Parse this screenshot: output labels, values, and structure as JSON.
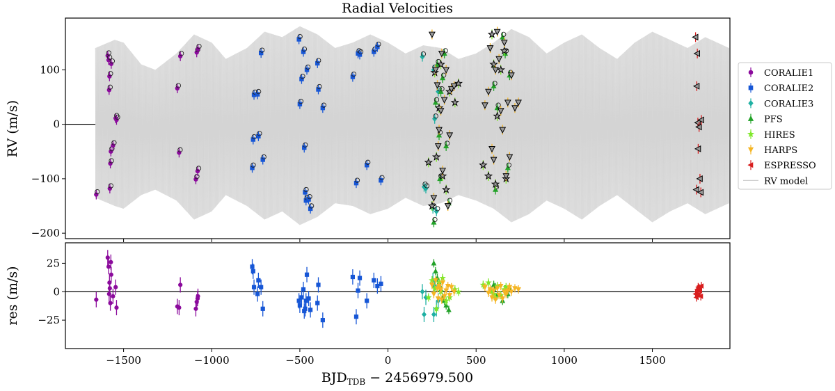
{
  "chart_data": {
    "type": "scatter",
    "title": "Radial Velocities",
    "xlabel_main": "BJD",
    "xlabel_sub": "TDB",
    "xlabel_suffix": " − 2456979.500",
    "xlim": [
      -1830,
      1940
    ],
    "xticks": [
      -1500,
      -1000,
      -500,
      0,
      500,
      1000,
      1500
    ],
    "xtick_labels": [
      "−1500",
      "−1000",
      "−500",
      "0",
      "500",
      "1000",
      "1500"
    ],
    "top_panel": {
      "ylabel": "RV (m/s)",
      "ylim": [
        -210,
        195
      ],
      "yticks": [
        -200,
        -100,
        0,
        100
      ],
      "ytick_labels": [
        "−200",
        "−100",
        "0",
        "100"
      ]
    },
    "bottom_panel": {
      "ylabel": "res (m/s)",
      "ylim": [
        -50,
        43
      ],
      "yticks": [
        -25,
        0,
        25
      ],
      "ytick_labels": [
        "−25",
        "0",
        "25"
      ]
    },
    "legend": {
      "location": "right",
      "entries": [
        {
          "label": "CORALIE1",
          "color": "#8b0a9c",
          "marker": "circle"
        },
        {
          "label": "CORALIE2",
          "color": "#1656d6",
          "marker": "square"
        },
        {
          "label": "CORALIE3",
          "color": "#1fb0a3",
          "marker": "diamond"
        },
        {
          "label": "PFS",
          "color": "#22a228",
          "marker": "triangle-up"
        },
        {
          "label": "HIRES",
          "color": "#7fe82a",
          "marker": "star"
        },
        {
          "label": "HARPS",
          "color": "#f5b524",
          "marker": "triangle-down"
        },
        {
          "label": "ESPRESSO",
          "color": "#d81e1e",
          "marker": "triangle-left"
        },
        {
          "label": "RV model",
          "color": "#cfcfcf",
          "marker": "line"
        }
      ]
    },
    "model_envelope": {
      "t": [
        -1660,
        -1550,
        -1500,
        -1400,
        -1320,
        -1200,
        -1100,
        -1000,
        -920,
        -800,
        -700,
        -600,
        -500,
        -400,
        -300,
        -200,
        -100,
        0,
        100,
        200,
        300,
        400,
        500,
        600,
        700,
        800,
        900,
        1000,
        1100,
        1200,
        1300,
        1400,
        1500,
        1600,
        1700,
        1800,
        1935
      ],
      "upper": [
        140,
        155,
        150,
        110,
        100,
        130,
        165,
        150,
        120,
        140,
        170,
        160,
        180,
        165,
        140,
        150,
        165,
        150,
        130,
        145,
        140,
        120,
        130,
        150,
        175,
        160,
        130,
        150,
        165,
        140,
        120,
        150,
        170,
        155,
        140,
        160,
        140
      ],
      "lower": [
        -135,
        -150,
        -155,
        -130,
        -120,
        -140,
        -175,
        -160,
        -130,
        -150,
        -175,
        -160,
        -185,
        -170,
        -145,
        -150,
        -165,
        -155,
        -135,
        -150,
        -145,
        -130,
        -140,
        -155,
        -180,
        -165,
        -140,
        -155,
        -175,
        -150,
        -130,
        -155,
        -180,
        -160,
        -145,
        -165,
        -145
      ]
    },
    "series": [
      {
        "name": "CORALIE1",
        "t": [
          -1655,
          -1590,
          -1585,
          -1582,
          -1580,
          -1578,
          -1575,
          -1572,
          -1570,
          -1560,
          -1545,
          -1540,
          -1195,
          -1185,
          -1178,
          -1090,
          -1085,
          -1080,
          -1078
        ],
        "rv": [
          -129,
          126,
          118,
          63,
          88,
          -118,
          -72,
          -50,
          111,
          -39,
          11,
          8,
          66,
          -52,
          125,
          -101,
          132,
          -86,
          138
        ],
        "res": [
          -7,
          30,
          22,
          -2,
          8,
          3,
          -10,
          26,
          15,
          -4,
          4,
          -14,
          -13,
          -14,
          6,
          -15,
          -9,
          -6,
          -4
        ]
      },
      {
        "name": "CORALIE2",
        "t": [
          -770,
          -765,
          -760,
          -740,
          -735,
          -720,
          -710,
          -505,
          -500,
          -490,
          -480,
          -475,
          -470,
          -465,
          -460,
          -450,
          -440,
          -400,
          -395,
          -370,
          -200,
          -180,
          -170,
          -160,
          -120,
          -80,
          -60,
          -40
        ],
        "rv": [
          -80,
          -28,
          54,
          55,
          -22,
          131,
          -65,
          156,
          37,
          83,
          133,
          -43,
          -125,
          -140,
          100,
          -138,
          -155,
          112,
          64,
          30,
          87,
          -108,
          130,
          128,
          -75,
          133,
          142,
          -103
        ],
        "res": [
          22,
          18,
          4,
          -2,
          10,
          4,
          -15,
          -8,
          -12,
          -5,
          2,
          -17,
          -15,
          -8,
          15,
          -6,
          -16,
          -10,
          6,
          -25,
          13,
          -22,
          1,
          12,
          -8,
          10,
          5,
          7
        ]
      },
      {
        "name": "CORALIE3",
        "t": [
          195,
          205,
          215,
          255,
          260,
          265,
          275,
          285
        ],
        "rv": [
          124,
          -115,
          -118,
          -155,
          100,
          10,
          -160,
          60
        ],
        "res": [
          0,
          -20,
          -5,
          10,
          -20,
          5,
          -15,
          -8
        ]
      },
      {
        "name": "PFS",
        "t": [
          260,
          270,
          280,
          290,
          295,
          300,
          310,
          320,
          330,
          345,
          600,
          610,
          620,
          650,
          665,
          680,
          690
        ],
        "rv": [
          -180,
          40,
          110,
          -20,
          -100,
          60,
          85,
          130,
          -40,
          -145,
          70,
          -120,
          30,
          160,
          130,
          -80,
          90
        ],
        "res": [
          25,
          18,
          12,
          8,
          5,
          2,
          -5,
          -8,
          -12,
          -16,
          6,
          4,
          -3,
          -8,
          2,
          -2,
          3
        ]
      },
      {
        "name": "HIRES",
        "t": [
          230,
          250,
          265,
          275,
          290,
          300,
          310,
          330,
          350,
          380,
          400,
          540,
          570,
          590,
          600,
          610,
          620,
          640,
          660,
          670
        ],
        "rv": [
          -70,
          -150,
          95,
          -60,
          30,
          110,
          -95,
          -120,
          60,
          40,
          75,
          -75,
          -95,
          165,
          110,
          -110,
          15,
          100,
          135,
          -100
        ],
        "res": [
          -5,
          10,
          3,
          -15,
          8,
          0,
          12,
          -8,
          -5,
          2,
          0,
          6,
          8,
          0,
          -2,
          -5,
          5,
          -3,
          2,
          4
        ],
        "hollow": true
      },
      {
        "name": "HARPS",
        "t": [
          250,
          260,
          270,
          280,
          285,
          290,
          300,
          305,
          310,
          320,
          330,
          340,
          350,
          360,
          375,
          550,
          570,
          580,
          590,
          600,
          610,
          620,
          630,
          640,
          650,
          660,
          670,
          680,
          690,
          700,
          720,
          740
        ],
        "rv": [
          165,
          -135,
          100,
          72,
          -40,
          -10,
          25,
          130,
          -85,
          45,
          100,
          -150,
          -20,
          65,
          70,
          35,
          60,
          140,
          -45,
          -65,
          100,
          170,
          120,
          25,
          -10,
          150,
          -95,
          40,
          -60,
          90,
          30,
          40
        ],
        "res": [
          6,
          -2,
          10,
          3,
          -6,
          5,
          2,
          -7,
          8,
          -4,
          1,
          5,
          -3,
          4,
          0,
          4,
          -1,
          2,
          -5,
          1,
          -7,
          3,
          -3,
          5,
          -6,
          0,
          -2,
          1,
          4,
          0,
          3,
          2
        ],
        "hollow": true
      },
      {
        "name": "ESPRESSO",
        "t": [
          1745,
          1750,
          1752,
          1755,
          1758,
          1760,
          1765,
          1770,
          1775,
          1778
        ],
        "rv": [
          160,
          -120,
          70,
          130,
          3,
          -45,
          -5,
          -100,
          -125,
          8
        ],
        "res": [
          -2,
          -5,
          0,
          2,
          -3,
          4,
          3,
          1,
          -4,
          5
        ],
        "hollow": true
      }
    ]
  }
}
